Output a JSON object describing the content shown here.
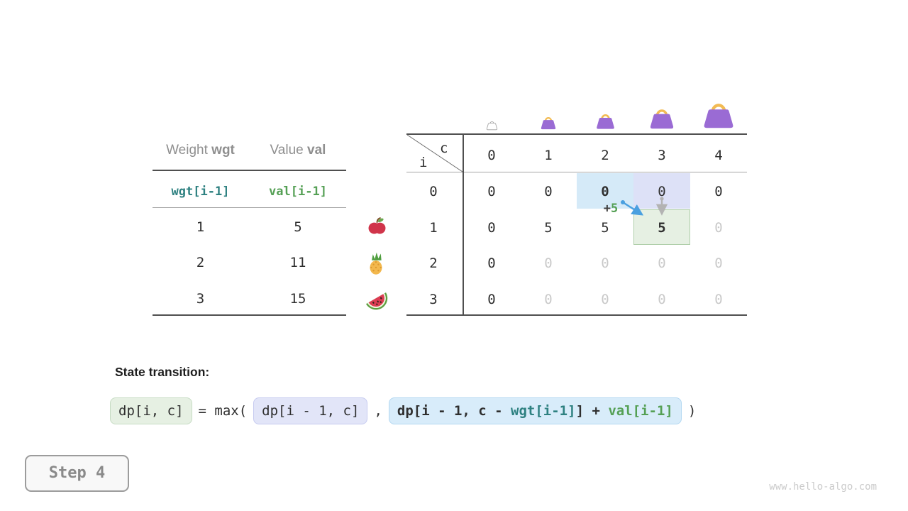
{
  "page": {
    "step_badge": "Step 4",
    "watermark": "www.hello-algo.com"
  },
  "item_table": {
    "header": {
      "weight_label": "Weight",
      "weight_code": "wgt",
      "value_label": "Value",
      "value_code": "val"
    },
    "index_row": {
      "weight_expr": "wgt[i-1]",
      "value_expr": "val[i-1]"
    },
    "rows": [
      {
        "weight": "1",
        "value": "5",
        "item": "apple"
      },
      {
        "weight": "2",
        "value": "11",
        "item": "pineapple"
      },
      {
        "weight": "3",
        "value": "15",
        "item": "watermelon"
      }
    ]
  },
  "dp_table": {
    "corner": {
      "col_var": "c",
      "row_var": "i"
    },
    "col_headers": [
      "0",
      "1",
      "2",
      "3",
      "4"
    ],
    "row_headers": [
      "0",
      "1",
      "2",
      "3"
    ],
    "bags": [
      {
        "capacity": "0",
        "variant": "empty"
      },
      {
        "capacity": "1",
        "variant": "filled"
      },
      {
        "capacity": "2",
        "variant": "filled"
      },
      {
        "capacity": "3",
        "variant": "filled"
      },
      {
        "capacity": "4",
        "variant": "filled"
      }
    ],
    "cells": [
      [
        {
          "text": "0",
          "style": "normal"
        },
        {
          "text": "0",
          "style": "normal"
        },
        {
          "text": "0",
          "style": "bold"
        },
        {
          "text": "0",
          "style": "normal"
        },
        {
          "text": "0",
          "style": "normal"
        }
      ],
      [
        {
          "text": "0",
          "style": "normal"
        },
        {
          "text": "5",
          "style": "normal"
        },
        {
          "text": "5",
          "style": "normal"
        },
        {
          "text": "5",
          "style": "bold"
        },
        {
          "text": "0",
          "style": "muted"
        }
      ],
      [
        {
          "text": "0",
          "style": "normal"
        },
        {
          "text": "0",
          "style": "muted"
        },
        {
          "text": "0",
          "style": "muted"
        },
        {
          "text": "0",
          "style": "muted"
        },
        {
          "text": "0",
          "style": "muted"
        }
      ],
      [
        {
          "text": "0",
          "style": "normal"
        },
        {
          "text": "0",
          "style": "muted"
        },
        {
          "text": "0",
          "style": "muted"
        },
        {
          "text": "0",
          "style": "muted"
        },
        {
          "text": "0",
          "style": "muted"
        }
      ]
    ],
    "highlights": [
      {
        "row": 0,
        "col": 2,
        "role": "source-take",
        "bg": "#d5eaf8"
      },
      {
        "row": 0,
        "col": 3,
        "role": "source-skip",
        "bg": "#dde1f7"
      },
      {
        "row": 1,
        "col": 3,
        "role": "target",
        "bg": "#e6f0e3",
        "border": "#b0cfaa"
      }
    ],
    "annotation": {
      "plus": "+",
      "value": "5"
    }
  },
  "formula": {
    "label": "State transition:",
    "lhs": "dp[i, c]",
    "eq_max": "= max(",
    "arg1": "dp[i - 1, c]",
    "comma": ",",
    "arg2": {
      "prefix": "dp[i - 1, c - ",
      "wgt": "wgt[i-1]",
      "mid": "] + ",
      "val": "val[i-1]"
    },
    "close": ")"
  },
  "colors": {
    "teal": "#2e8181",
    "green": "#55a055",
    "arrow_blue": "#4aa0e0",
    "arrow_gray": "#b3b3b3",
    "bag_purple": "#9a6bd4",
    "bag_handle": "#f2bb54",
    "text_dark": "#2f2f2f",
    "text_muted": "#c9c9c9",
    "text_gray": "#8f8f8f",
    "line_dark": "#4f4f4f",
    "line_light": "#a6a6a6",
    "formula_green_bg": "#e6f0e3",
    "formula_green_border": "#c7dcc4",
    "formula_lavender_bg": "#e2e5f8",
    "formula_lavender_border": "#c6cbf0",
    "formula_blue_bg": "#d8ecfa",
    "formula_blue_border": "#b3d8f1"
  }
}
